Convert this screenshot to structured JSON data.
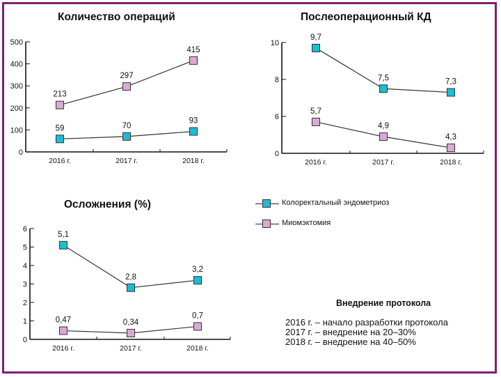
{
  "colors": {
    "frame": "#7e1f73",
    "series_colorectal": "#1cbcd4",
    "series_myomectomy": "#d9aad3",
    "line": "#333333"
  },
  "legend": {
    "items": [
      {
        "label": "Колоректальный эндометриоз",
        "color": "#1cbcd4"
      },
      {
        "label": "Миомэктомия",
        "color": "#d9aad3"
      }
    ]
  },
  "protocol_note": {
    "heading": "Внедрение протокола",
    "lines": [
      "2016 г. – начало разработки протокола",
      "2017 г. – внедрение на 20–30%",
      "2018 г. – внедрение на 40–50%"
    ]
  },
  "chart_data": [
    {
      "type": "line",
      "title": "Количество операций",
      "xlabel": "",
      "ylabel": "",
      "categories": [
        "2016 г.",
        "2017 г.",
        "2018 г."
      ],
      "ylim": [
        0,
        500
      ],
      "yticks": [
        "0",
        "100",
        "200",
        "300",
        "400",
        "500"
      ],
      "ytick_values": [
        0,
        100,
        200,
        300,
        400,
        500
      ],
      "series": [
        {
          "name": "Колоректальный эндометриоз",
          "values": [
            59,
            70,
            93
          ],
          "labels": [
            "59",
            "70",
            "93"
          ]
        },
        {
          "name": "Миомэктомия",
          "values": [
            213,
            297,
            415
          ],
          "labels": [
            "213",
            "297",
            "415"
          ]
        }
      ]
    },
    {
      "type": "line",
      "title": "Послеоперационный КД",
      "xlabel": "",
      "ylabel": "",
      "categories": [
        "2016 г.",
        "2017 г.",
        "2018 г."
      ],
      "ylim": [
        0,
        10
      ],
      "axis_break": true,
      "yticks": [
        "0",
        "6",
        "8",
        "10"
      ],
      "ytick_values": [
        0,
        6,
        8,
        10
      ],
      "series": [
        {
          "name": "Колоректальный эндометриоз",
          "values": [
            9.7,
            7.5,
            7.3
          ],
          "labels": [
            "9,7",
            "7,5",
            "7,3"
          ]
        },
        {
          "name": "Миомэктомия",
          "values": [
            5.7,
            4.9,
            4.3
          ],
          "labels": [
            "5,7",
            "4,9",
            "4,3"
          ]
        }
      ]
    },
    {
      "type": "line",
      "title": "Осложнения (%)",
      "xlabel": "",
      "ylabel": "",
      "categories": [
        "2016 г.",
        "2017 г.",
        "2018 г."
      ],
      "ylim": [
        0,
        6
      ],
      "yticks": [
        "0",
        "1",
        "2",
        "3",
        "4",
        "5",
        "6"
      ],
      "ytick_values": [
        0,
        1,
        2,
        3,
        4,
        5,
        6
      ],
      "series": [
        {
          "name": "Колоректальный эндометриоз",
          "values": [
            5.1,
            2.8,
            3.2
          ],
          "labels": [
            "5,1",
            "2,8",
            "3,2"
          ]
        },
        {
          "name": "Миомэктомия",
          "values": [
            0.47,
            0.34,
            0.7
          ],
          "labels": [
            "0,47",
            "0,34",
            "0,7"
          ]
        }
      ]
    }
  ]
}
